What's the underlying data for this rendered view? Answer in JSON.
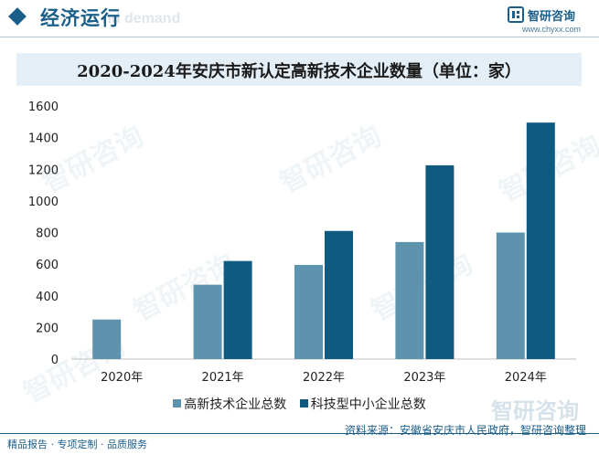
{
  "header": {
    "title": "经济运行",
    "ghost_text": "nd demand"
  },
  "brand": {
    "name": "智研咨询",
    "url": "www.chyxx.com",
    "logo_icon": "zhiyan-logo-icon",
    "watermark_text": "智研咨询"
  },
  "colors": {
    "accent": "#1a5e8a",
    "series_1": "#5e93ad",
    "series_2": "#0e5a80",
    "title_band": "#e3eef6"
  },
  "chart_data": {
    "type": "bar",
    "title": "2020-2024年安庆市新认定高新技术企业数量（单位：家）",
    "categories": [
      "2020年",
      "2021年",
      "2022年",
      "2023年",
      "2024年"
    ],
    "series": [
      {
        "name": "高新技术企业总数",
        "values": [
          250,
          470,
          595,
          740,
          800
        ]
      },
      {
        "name": "科技型中小企业总数",
        "values": [
          null,
          620,
          810,
          1225,
          1495
        ]
      }
    ],
    "ylim": [
      0,
      1600
    ],
    "yticks": [
      0,
      200,
      400,
      600,
      800,
      1000,
      1200,
      1400,
      1600
    ],
    "grid": false,
    "legend_position": "bottom"
  },
  "source": "资料来源：安徽省安庆市人民政府，智研咨询整理",
  "footer": "精品报告 · 专项定制 · 品质服务"
}
